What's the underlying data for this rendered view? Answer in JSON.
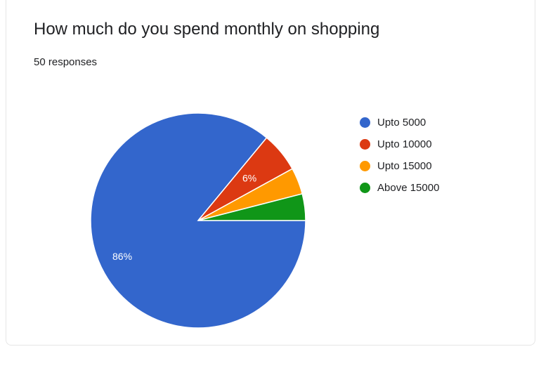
{
  "header": {
    "title": "How much do you spend monthly on shopping",
    "subtitle": "50 responses"
  },
  "chart_data": {
    "type": "pie",
    "categories": [
      "Upto 5000",
      "Upto 10000",
      "Upto 15000",
      "Above 15000"
    ],
    "values": [
      86,
      6,
      4,
      4
    ],
    "data_labels": [
      "86%",
      "6%",
      "",
      ""
    ],
    "colors": [
      "#3366cc",
      "#dc3912",
      "#ff9900",
      "#109618"
    ],
    "legend_position": "right"
  }
}
